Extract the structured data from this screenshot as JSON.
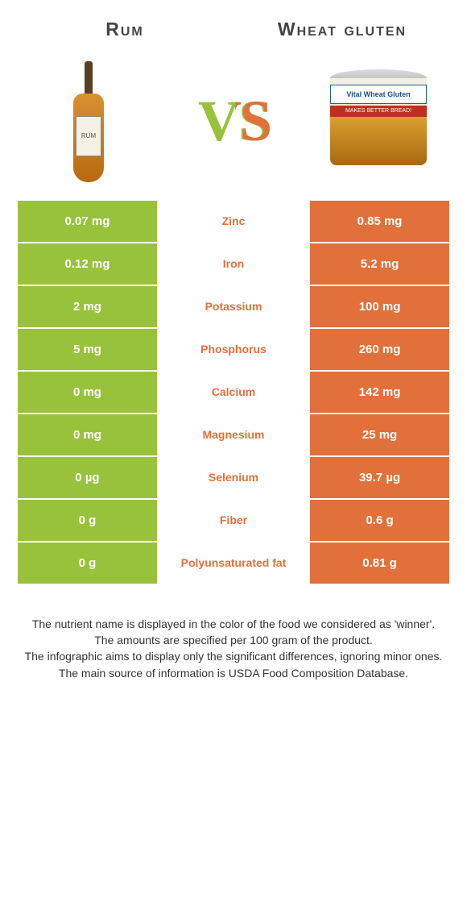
{
  "left": {
    "title": "Rum",
    "color": "#99c23c",
    "bottle_label": "RUM"
  },
  "right": {
    "title": "Wheat gluten",
    "color": "#e2703a",
    "can_label1": "Vital Wheat Gluten",
    "can_label2": "MAKES BETTER BREAD!"
  },
  "rows": [
    {
      "nutrient": "Zinc",
      "left": "0.07 mg",
      "right": "0.85 mg",
      "winner": "right"
    },
    {
      "nutrient": "Iron",
      "left": "0.12 mg",
      "right": "5.2 mg",
      "winner": "right"
    },
    {
      "nutrient": "Potassium",
      "left": "2 mg",
      "right": "100 mg",
      "winner": "right"
    },
    {
      "nutrient": "Phosphorus",
      "left": "5 mg",
      "right": "260 mg",
      "winner": "right"
    },
    {
      "nutrient": "Calcium",
      "left": "0 mg",
      "right": "142 mg",
      "winner": "right"
    },
    {
      "nutrient": "Magnesium",
      "left": "0 mg",
      "right": "25 mg",
      "winner": "right"
    },
    {
      "nutrient": "Selenium",
      "left": "0 µg",
      "right": "39.7 µg",
      "winner": "right"
    },
    {
      "nutrient": "Fiber",
      "left": "0 g",
      "right": "0.6 g",
      "winner": "right"
    },
    {
      "nutrient": "Polyunsaturated fat",
      "left": "0 g",
      "right": "0.81 g",
      "winner": "right"
    }
  ],
  "footnotes": [
    "The nutrient name is displayed in the color of the food we considered as 'winner'.",
    "The amounts are specified per 100 gram of the product.",
    "The infographic aims to display only the significant differences, ignoring minor ones.",
    "The main source of information is USDA Food Composition Database."
  ]
}
